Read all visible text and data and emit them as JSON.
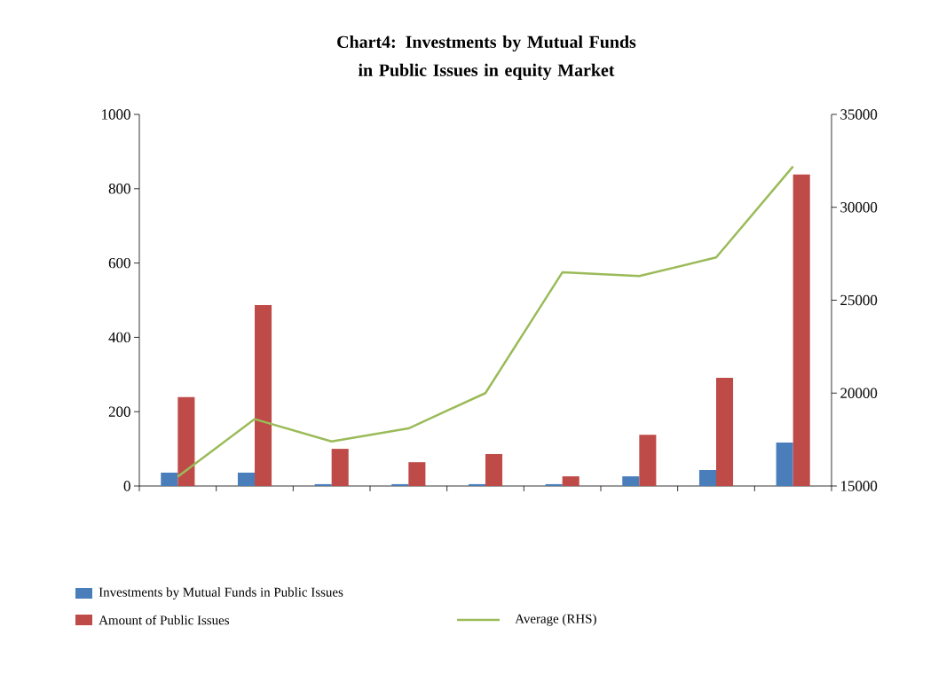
{
  "chart_data": {
    "type": "bar",
    "title": "Chart4: Investments by Mutual Funds in Public Issues in equity Market",
    "categories": [
      null,
      null,
      null,
      null,
      null,
      null,
      null,
      null,
      null
    ],
    "series": [
      {
        "name": "Investments by Mutual Funds in Public Issues",
        "color": "#4a7ebb",
        "values": [
          36,
          36,
          5,
          5,
          5,
          5,
          26,
          43,
          117
        ]
      },
      {
        "name": "Amount of Public Issues",
        "color": "#be4b48",
        "values": [
          239,
          487,
          100,
          64,
          86,
          26,
          138,
          291,
          838
        ]
      },
      {
        "name": "Average (RHS)",
        "type": "line",
        "axis": "y2",
        "color": "#9bbb59",
        "values": [
          15500,
          18600,
          17400,
          18100,
          20000,
          26500,
          26300,
          27300,
          32200
        ]
      }
    ],
    "ylim": [
      0,
      1000
    ],
    "yticks": [
      0,
      200,
      400,
      600,
      800,
      1000
    ],
    "y2lim": [
      15000,
      35000
    ],
    "y2ticks": [
      15000,
      20000,
      25000,
      30000,
      35000
    ],
    "tick_labels": "y",
    "legend": "bottom",
    "grid": false
  }
}
